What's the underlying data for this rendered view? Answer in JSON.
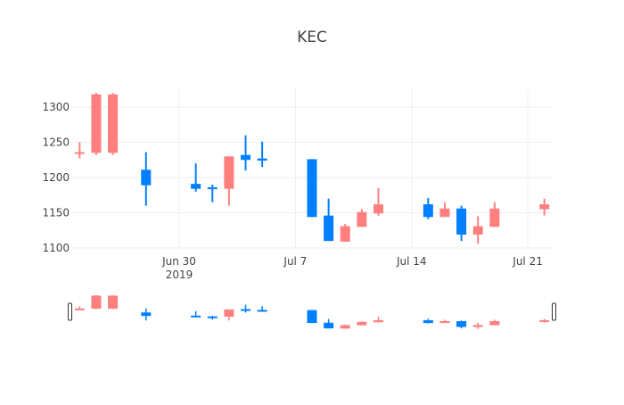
{
  "chart_data": {
    "type": "candlestick",
    "title": "KEC",
    "xlabel": "",
    "ylabel": "",
    "increasing_color": "#FF7F7F",
    "decreasing_color": "#007FFF",
    "grid": true,
    "legend": false,
    "ylim": [
      1095,
      1320
    ],
    "yticks": [
      1100,
      1150,
      1200,
      1250,
      1300
    ],
    "xticks": [
      {
        "date": "2019-06-30",
        "label": "Jun 30",
        "sublabel": "2019"
      },
      {
        "date": "2019-07-07",
        "label": "Jul 7",
        "sublabel": ""
      },
      {
        "date": "2019-07-14",
        "label": "Jul 14",
        "sublabel": ""
      },
      {
        "date": "2019-07-21",
        "label": "Jul 21",
        "sublabel": ""
      }
    ],
    "xrange": [
      "2019-06-24",
      "2019-07-22"
    ],
    "rangeslider": {
      "visible": true,
      "yrange": [
        1100,
        1320
      ]
    },
    "series": [
      {
        "date": "2019-06-24",
        "open": 1235,
        "high": 1250,
        "low": 1227,
        "close": 1236
      },
      {
        "date": "2019-06-25",
        "open": 1235,
        "high": 1320,
        "low": 1232,
        "close": 1318
      },
      {
        "date": "2019-06-26",
        "open": 1235,
        "high": 1320,
        "low": 1232,
        "close": 1318
      },
      {
        "date": "2019-06-28",
        "open": 1211,
        "high": 1236,
        "low": 1160,
        "close": 1189
      },
      {
        "date": "2019-07-01",
        "open": 1191,
        "high": 1220,
        "low": 1180,
        "close": 1184
      },
      {
        "date": "2019-07-02",
        "open": 1186,
        "high": 1190,
        "low": 1165,
        "close": 1184
      },
      {
        "date": "2019-07-03",
        "open": 1184,
        "high": 1230,
        "low": 1160,
        "close": 1230
      },
      {
        "date": "2019-07-04",
        "open": 1232,
        "high": 1260,
        "low": 1210,
        "close": 1225
      },
      {
        "date": "2019-07-05",
        "open": 1227,
        "high": 1251,
        "low": 1215,
        "close": 1224
      },
      {
        "date": "2019-07-08",
        "open": 1226,
        "high": 1226,
        "low": 1144,
        "close": 1144
      },
      {
        "date": "2019-07-09",
        "open": 1146,
        "high": 1170,
        "low": 1110,
        "close": 1110
      },
      {
        "date": "2019-07-10",
        "open": 1109,
        "high": 1134,
        "low": 1109,
        "close": 1131
      },
      {
        "date": "2019-07-11",
        "open": 1130,
        "high": 1155,
        "low": 1130,
        "close": 1151
      },
      {
        "date": "2019-07-12",
        "open": 1149,
        "high": 1185,
        "low": 1146,
        "close": 1162
      },
      {
        "date": "2019-07-15",
        "open": 1162,
        "high": 1171,
        "low": 1141,
        "close": 1144
      },
      {
        "date": "2019-07-16",
        "open": 1144,
        "high": 1165,
        "low": 1144,
        "close": 1156
      },
      {
        "date": "2019-07-17",
        "open": 1156,
        "high": 1160,
        "low": 1110,
        "close": 1119
      },
      {
        "date": "2019-07-18",
        "open": 1119,
        "high": 1145,
        "low": 1106,
        "close": 1131
      },
      {
        "date": "2019-07-19",
        "open": 1130,
        "high": 1165,
        "low": 1130,
        "close": 1156
      },
      {
        "date": "2019-07-22",
        "open": 1155,
        "high": 1170,
        "low": 1146,
        "close": 1162
      }
    ]
  }
}
